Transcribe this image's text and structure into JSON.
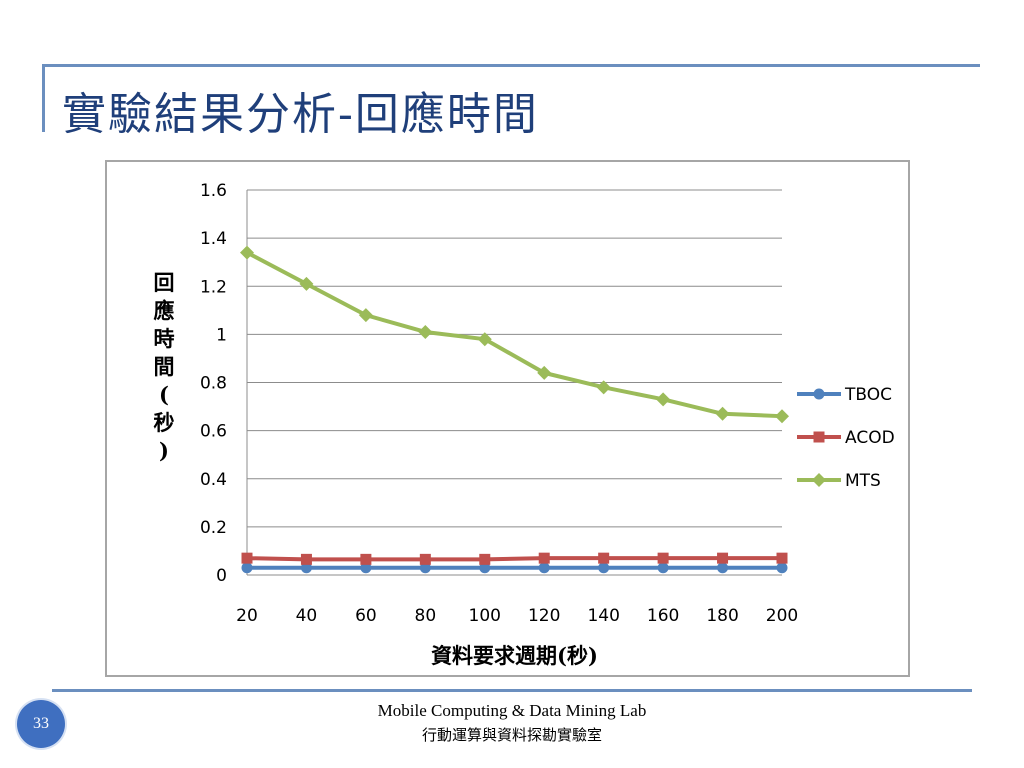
{
  "slide": {
    "title": "實驗結果分析-回應時間",
    "page_number": "33",
    "footer_en": "Mobile Computing & Data Mining Lab",
    "footer_zh": "行動運算與資料探勘實驗室"
  },
  "colors": {
    "title": "#1f3f7a",
    "rule": "#6b8fbf",
    "badge": "#3f6fc0"
  },
  "chart_data": {
    "type": "line",
    "title": "",
    "xlabel": "資料要求週期(秒)",
    "ylabel": "回應時間(秒)",
    "x": [
      20,
      40,
      60,
      80,
      100,
      120,
      140,
      160,
      180,
      200
    ],
    "ylim": [
      0,
      1.6
    ],
    "yticks": [
      0,
      0.2,
      0.4,
      0.6,
      0.8,
      1,
      1.2,
      1.4,
      1.6
    ],
    "grid": true,
    "legend_position": "right",
    "series": [
      {
        "name": "TBOC",
        "color": "#4f81bd",
        "marker": "circle",
        "values": [
          0.03,
          0.03,
          0.03,
          0.03,
          0.03,
          0.03,
          0.03,
          0.03,
          0.03,
          0.03
        ]
      },
      {
        "name": "ACOD",
        "color": "#c0504d",
        "marker": "square",
        "values": [
          0.07,
          0.065,
          0.065,
          0.065,
          0.065,
          0.07,
          0.07,
          0.07,
          0.07,
          0.07
        ]
      },
      {
        "name": "MTS",
        "color": "#9bbb59",
        "marker": "diamond",
        "values": [
          1.34,
          1.21,
          1.08,
          1.01,
          0.98,
          0.84,
          0.78,
          0.73,
          0.67,
          0.66
        ]
      }
    ]
  }
}
